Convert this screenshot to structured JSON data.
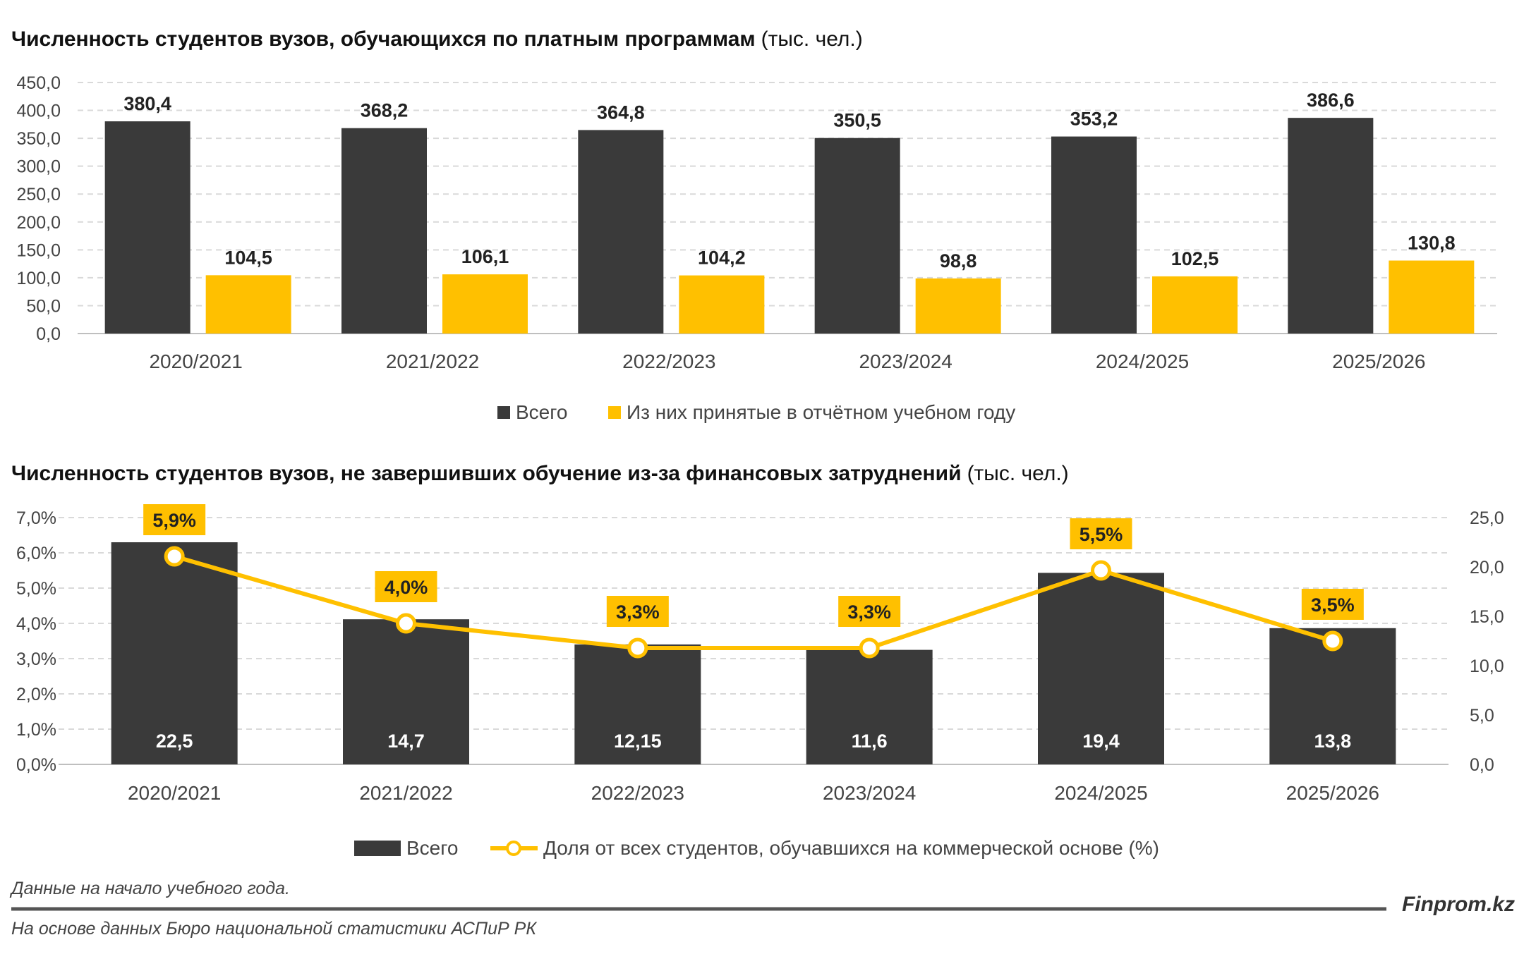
{
  "chart_data": [
    {
      "type": "bar",
      "title": "Численность студентов вузов, обучающихся по платным программам",
      "title_unit": "(тыс. чел.)",
      "categories": [
        "2020/2021",
        "2021/2022",
        "2022/2023",
        "2023/2024",
        "2024/2025",
        "2025/2026"
      ],
      "series": [
        {
          "name": "Всего",
          "color": "#3a3a3a",
          "values": [
            380.4,
            368.2,
            364.8,
            350.5,
            353.2,
            386.6
          ],
          "labels": [
            "380,4",
            "368,2",
            "364,8",
            "350,5",
            "353,2",
            "386,6"
          ]
        },
        {
          "name": "Из них принятые в отчётном учебном году",
          "color": "#ffc000",
          "values": [
            104.5,
            106.1,
            104.2,
            98.8,
            102.5,
            130.8
          ],
          "labels": [
            "104,5",
            "106,1",
            "104,2",
            "98,8",
            "102,5",
            "130,8"
          ]
        }
      ],
      "ylim": [
        0,
        450
      ],
      "yticks": [
        "0,0",
        "50,0",
        "100,0",
        "150,0",
        "200,0",
        "250,0",
        "300,0",
        "350,0",
        "400,0",
        "450,0"
      ],
      "grid": true,
      "legend": "bottom"
    },
    {
      "type": "bar+line",
      "title": "Численность студентов вузов, не завершивших обучение из-за финансовых затруднений",
      "title_unit": "(тыс. чел.)",
      "categories": [
        "2020/2021",
        "2021/2022",
        "2022/2023",
        "2023/2024",
        "2024/2025",
        "2025/2026"
      ],
      "series": [
        {
          "name": "Всего",
          "type": "bar",
          "axis": "right",
          "color": "#3a3a3a",
          "values": [
            22.5,
            14.7,
            12.15,
            11.6,
            19.4,
            13.8
          ],
          "labels": [
            "22,5",
            "14,7",
            "12,15",
            "11,6",
            "19,4",
            "13,8"
          ]
        },
        {
          "name": "Доля от всех студентов, обучавшихся на коммерческой основе (%)",
          "type": "line",
          "axis": "left",
          "color": "#ffc000",
          "values": [
            5.9,
            4.0,
            3.3,
            3.3,
            5.5,
            3.5
          ],
          "labels": [
            "5,9%",
            "4,0%",
            "3,3%",
            "3,3%",
            "5,5%",
            "3,5%"
          ]
        }
      ],
      "ylim_left": [
        0,
        7
      ],
      "yticks_left": [
        "0,0%",
        "1,0%",
        "2,0%",
        "3,0%",
        "4,0%",
        "5,0%",
        "6,0%",
        "7,0%"
      ],
      "ylim_right": [
        0,
        25
      ],
      "yticks_right": [
        "0,0",
        "5,0",
        "10,0",
        "15,0",
        "20,0",
        "25,0"
      ],
      "grid": true,
      "legend": "bottom"
    }
  ],
  "footer": {
    "note": "Данные на начало учебного года.",
    "source": "На основе данных Бюро национальной статистики АСПиР РК",
    "brand": "Finprom.kz"
  }
}
